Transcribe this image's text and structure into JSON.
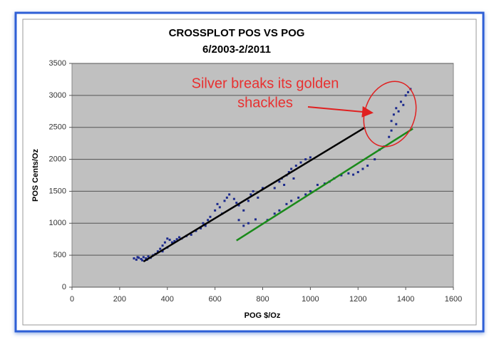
{
  "chart_data": {
    "type": "scatter",
    "title": "CROSSPLOT POS VS POG",
    "subtitle": "6/2003-2/2011",
    "x_label": "POG $/Oz",
    "y_label": "POS Cents/Oz",
    "xlim": [
      0,
      1600
    ],
    "xticks": [
      0,
      200,
      400,
      600,
      800,
      1000,
      1200,
      1400,
      1600
    ],
    "ylim": [
      0,
      3500
    ],
    "yticks": [
      0,
      500,
      1000,
      1500,
      2000,
      2500,
      3000,
      3500
    ],
    "grid": true,
    "series": [
      {
        "color": "#1c2a8c",
        "x": [
          260,
          270,
          280,
          290,
          300,
          310,
          320,
          330,
          340,
          275,
          295,
          315,
          350,
          360,
          370,
          380,
          390,
          400,
          410,
          420,
          430,
          440,
          450,
          460,
          480,
          500,
          380,
          400,
          520,
          540,
          550,
          560,
          580,
          600,
          610,
          620,
          640,
          650,
          660,
          680,
          690,
          700,
          630,
          570,
          700,
          720,
          740,
          750,
          760,
          780,
          800,
          720,
          740,
          770,
          850,
          870,
          880,
          900,
          910,
          920,
          940,
          960,
          980,
          1000,
          890,
          930,
          820,
          850,
          870,
          900,
          920,
          950,
          980,
          1000,
          1030,
          1060,
          1100,
          1130,
          1160,
          1200,
          1220,
          1240,
          1080,
          1180,
          1270,
          1290,
          1310,
          1330,
          1340,
          1340,
          1350,
          1360,
          1370,
          1380,
          1390,
          1400,
          1410,
          1420,
          1360
        ],
        "values": [
          450,
          430,
          460,
          440,
          470,
          450,
          480,
          460,
          500,
          470,
          420,
          430,
          520,
          560,
          600,
          650,
          700,
          760,
          740,
          700,
          720,
          750,
          780,
          760,
          800,
          820,
          560,
          620,
          880,
          920,
          1000,
          960,
          1100,
          1200,
          1300,
          1250,
          1350,
          1400,
          1450,
          1380,
          1320,
          1280,
          1150,
          1050,
          1050,
          1200,
          1350,
          1450,
          1500,
          1400,
          1550,
          960,
          1000,
          1060,
          1550,
          1650,
          1700,
          1750,
          1800,
          1850,
          1900,
          1950,
          2000,
          2030,
          1600,
          1700,
          1050,
          1150,
          1200,
          1300,
          1350,
          1400,
          1450,
          1500,
          1600,
          1620,
          1700,
          1750,
          1780,
          1800,
          1850,
          1900,
          1650,
          1760,
          2000,
          2150,
          2200,
          2350,
          2450,
          2600,
          2700,
          2800,
          2750,
          2900,
          2850,
          3000,
          3050,
          3100,
          2550
        ]
      }
    ],
    "lines": [
      {
        "color": "#000000",
        "x": [
          300,
          1230
        ],
        "values": [
          400,
          2500
        ]
      },
      {
        "color": "#1a8a1a",
        "x": [
          690,
          1430
        ],
        "values": [
          730,
          2480
        ]
      }
    ],
    "annotation": [
      "Silver breaks its golden",
      "shackles"
    ]
  }
}
